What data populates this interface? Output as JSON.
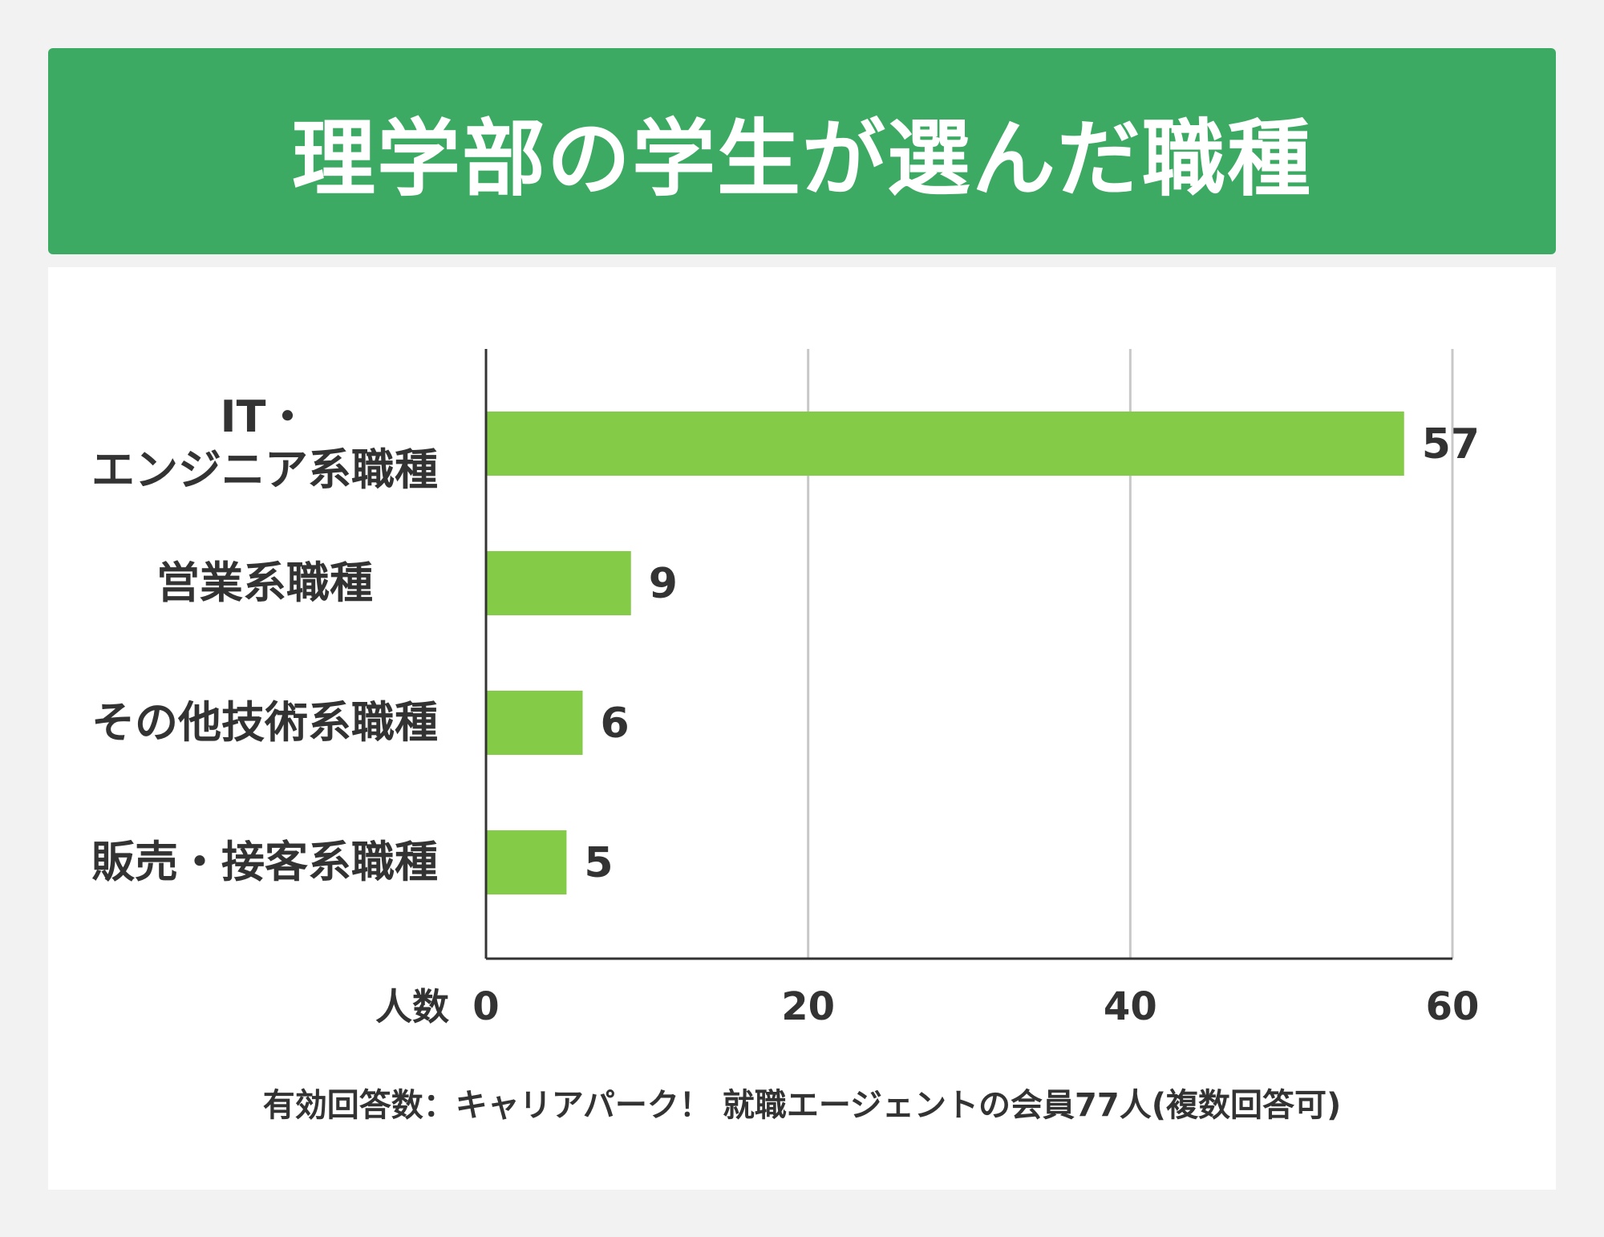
{
  "title": "理学部の学生が選んだ職種",
  "note": "有効回答数：キャリアパーク！ 就職エージェントの会員77人(複数回答可)",
  "colors": {
    "header": "#3daa64",
    "bar": "#84cc48",
    "grid": "#c8c8c8",
    "axis": "#333333",
    "text": "#333333"
  },
  "chart_data": {
    "type": "bar",
    "orientation": "horizontal",
    "categories": [
      [
        "IT・",
        "エンジニア系職種"
      ],
      [
        "営業系職種"
      ],
      [
        "その他技術系職種"
      ],
      [
        "販売・接客系職種"
      ]
    ],
    "values": [
      57,
      9,
      6,
      5
    ],
    "title": "理学部の学生が選んだ職種",
    "xlabel": "人数",
    "ylabel": "",
    "xlim": [
      0,
      60
    ],
    "xticks": [
      0,
      20,
      40,
      60
    ],
    "grid": true,
    "legend": "none"
  }
}
